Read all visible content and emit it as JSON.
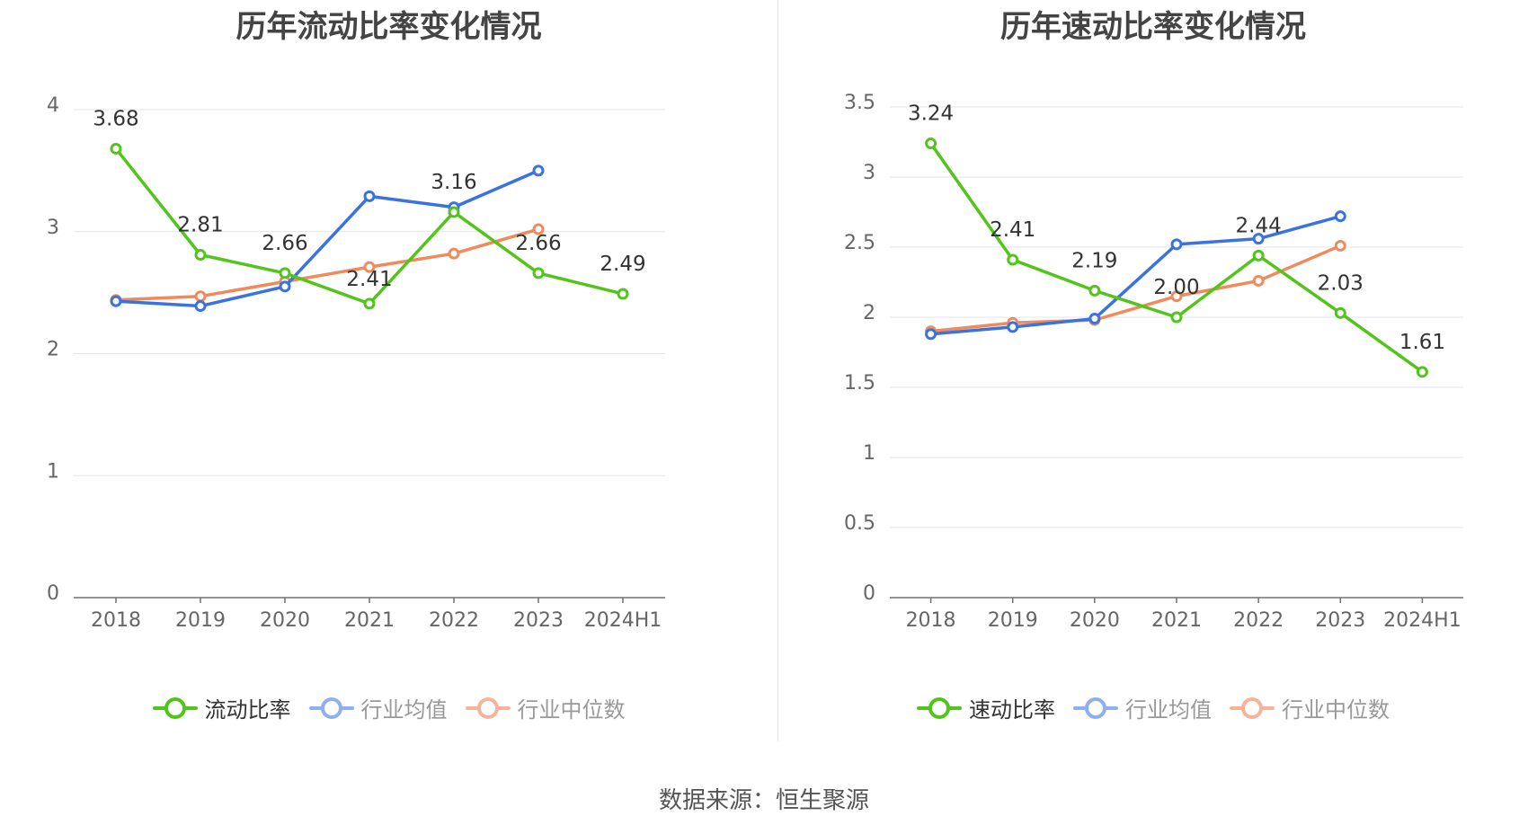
{
  "chart_data": [
    {
      "type": "line",
      "title": "历年流动比率变化情况",
      "categories": [
        "2018",
        "2019",
        "2020",
        "2021",
        "2022",
        "2023",
        "2024H1"
      ],
      "ylim": [
        0,
        4
      ],
      "yticks": [
        "0",
        "1",
        "2",
        "3",
        "4"
      ],
      "ytick_values": [
        0,
        1,
        2,
        3,
        4
      ],
      "series": [
        {
          "name": "流动比率",
          "color": "#52c41a",
          "values": [
            3.68,
            2.81,
            2.66,
            2.41,
            3.16,
            2.66,
            2.49
          ],
          "labels": [
            "3.68",
            "2.81",
            "2.66",
            "2.41",
            "3.16",
            "2.66",
            "2.49"
          ]
        },
        {
          "name": "行业均值",
          "color": "#3a73e0",
          "values": [
            2.43,
            2.39,
            2.55,
            3.29,
            3.2,
            3.5,
            null
          ]
        },
        {
          "name": "行业中位数",
          "color": "#f08a5d",
          "values": [
            2.44,
            2.47,
            2.59,
            2.71,
            2.82,
            3.02,
            null
          ]
        }
      ]
    },
    {
      "type": "line",
      "title": "历年速动比率变化情况",
      "categories": [
        "2018",
        "2019",
        "2020",
        "2021",
        "2022",
        "2023",
        "2024H1"
      ],
      "ylim": [
        0,
        3.5
      ],
      "yticks": [
        "0",
        "0.5",
        "1",
        "1.5",
        "2",
        "2.5",
        "3",
        "3.5"
      ],
      "ytick_values": [
        0,
        0.5,
        1,
        1.5,
        2,
        2.5,
        3,
        3.5
      ],
      "series": [
        {
          "name": "速动比率",
          "color": "#52c41a",
          "values": [
            3.24,
            2.41,
            2.19,
            2.0,
            2.44,
            2.03,
            1.61
          ],
          "labels": [
            "3.24",
            "2.41",
            "2.19",
            "2.00",
            "2.44",
            "2.03",
            "1.61"
          ]
        },
        {
          "name": "行业均值",
          "color": "#3a73e0",
          "values": [
            1.88,
            1.93,
            1.99,
            2.52,
            2.56,
            2.72,
            null
          ]
        },
        {
          "name": "行业中位数",
          "color": "#f08a5d",
          "values": [
            1.9,
            1.96,
            1.98,
            2.15,
            2.26,
            2.51,
            null
          ]
        }
      ]
    }
  ],
  "source_text": "数据来源：恒生聚源"
}
